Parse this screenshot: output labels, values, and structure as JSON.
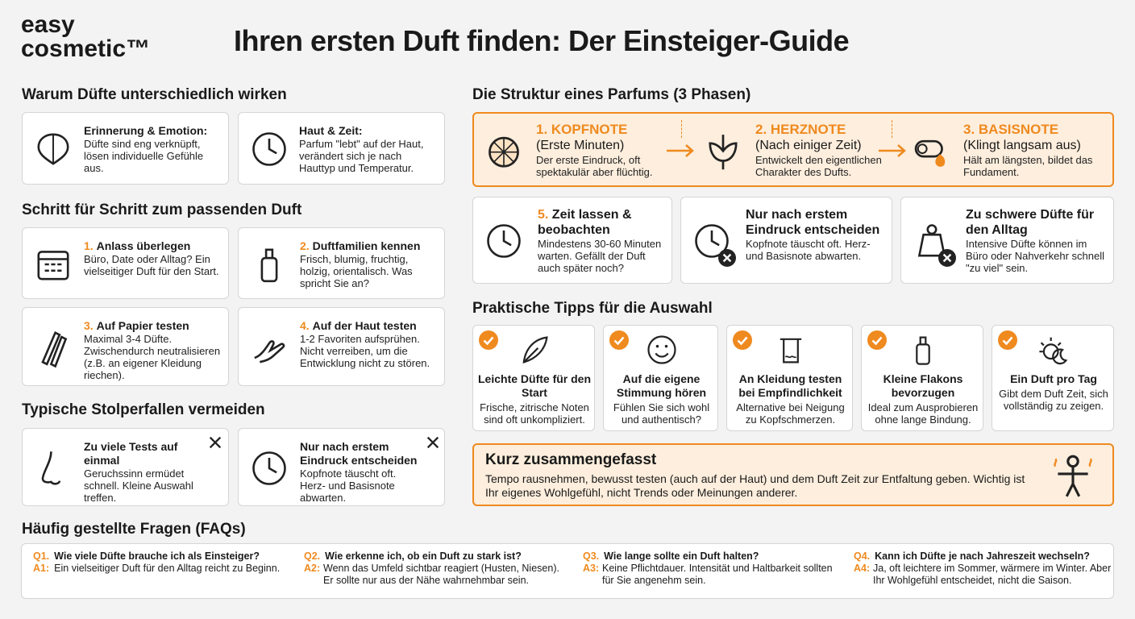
{
  "header": {
    "logo": [
      "easy",
      "cosmetic™"
    ],
    "title": "Ihren ersten Duft finden: Der Einsteiger-Guide"
  },
  "why": {
    "title": "Warum Düfte unterschiedlich wirken",
    "cards": [
      {
        "title": "Erinnerung & Emotion:",
        "text": "Düfte sind eng verknüpft, lösen individuelle Gefühle aus."
      },
      {
        "title": "Haut & Zeit:",
        "text": "Parfum \"lebt\" auf der Haut, verändert sich je nach Hauttyp und Temperatur."
      }
    ]
  },
  "steps": {
    "title": "Schritt für Schritt zum passenden Duft",
    "cards": [
      {
        "number": "1.",
        "title": "Anlass überlegen",
        "text": "Büro, Date oder Alltag? Ein vielseitiger Duft für den Start."
      },
      {
        "number": "2.",
        "title": "Duftfamilien kennen",
        "text": "Frisch, blumig, fruchtig, holzig, orientalisch. Was spricht Sie an?"
      },
      {
        "number": "3.",
        "title": "Auf Papier testen",
        "text": "Maximal 3-4 Düfte. Zwischendurch neutralisieren (z.B. an eigener Kleidung riechen)."
      },
      {
        "number": "4.",
        "title": "Auf der Haut testen",
        "text": "1-2 Favoriten aufsprühen. Nicht verreiben, um die Entwicklung nicht zu stören."
      }
    ]
  },
  "pitfalls": {
    "title": "Typische Stolperfallen vermeiden",
    "cards": [
      {
        "title": "Zu viele Tests auf einmal",
        "text": "Geruchssinn ermüdet schnell. Kleine Auswahl treffen."
      },
      {
        "title": "Nur nach erstem Eindruck entscheiden",
        "text": "Kopfnote täuscht oft. Herz- und Basisnote abwarten."
      }
    ]
  },
  "structure": {
    "title": "Die Struktur eines Parfums (3 Phasen)",
    "phases": [
      {
        "title": "1. KOPFNOTE",
        "subtitle": "(Erste Minuten)",
        "text": "Der erste Eindruck, oft spektakulär aber flüchtig."
      },
      {
        "title": "2. HERZNOTE",
        "subtitle": "(Nach einiger Zeit)",
        "text": "Entwickelt den eigentlichen Charakter des Dufts."
      },
      {
        "title": "3. BASISNOTE",
        "subtitle": "(Klingt langsam aus)",
        "text": "Hält am längsten, bildet das Fundament."
      }
    ],
    "cards": [
      {
        "number": "5.",
        "title": "Zeit lassen & beobachten",
        "text": "Mindestens 30-60 Minuten warten. Gefällt der Duft auch später noch?"
      },
      {
        "title": "Nur nach erstem Eindruck entscheiden",
        "text": "Kopfnote täuscht oft. Herz- und Basisnote abwarten."
      },
      {
        "title": "Zu schwere Düfte für den Alltag",
        "text": "Intensive Düfte können im Büro oder Nahverkehr schnell \"zu viel\" sein."
      }
    ]
  },
  "tips": {
    "title": "Praktische Tipps für die Auswahl",
    "items": [
      {
        "title": "Leichte Düfte für den Start",
        "text": "Frische, zitrische Noten sind oft unkompliziert."
      },
      {
        "title": "Auf die eigene Stimmung hören",
        "text": "Fühlen Sie sich wohl und authentisch?"
      },
      {
        "title": "An Kleidung testen bei Empfindlichkeit",
        "text": "Alternative bei Neigung zu Kopfschmerzen."
      },
      {
        "title": "Kleine Flakons bevorzugen",
        "text": "Ideal zum Ausprobieren ohne lange Bindung."
      },
      {
        "title": "Ein Duft pro Tag",
        "text": "Gibt dem Duft Zeit, sich vollständig zu zeigen."
      }
    ]
  },
  "summary": {
    "title": "Kurz zusammengefasst",
    "text": "Tempo rausnehmen, bewusst testen (auch auf der Haut) und dem Duft Zeit zur Entfaltung geben. Wichtig ist Ihr eigenes Wohlgefühl, nicht Trends oder Meinungen anderer."
  },
  "faq": {
    "title": "Häufig gestellte Fragen (FAQs)",
    "items": [
      {
        "q_label": "Q1.",
        "question": "Wie viele Düfte brauche ich als Einsteiger?",
        "a_label": "A1:",
        "answer": "Ein vielseitiger Duft für den Alltag reicht zu Beginn."
      },
      {
        "q_label": "Q2.",
        "question": "Wie erkenne ich, ob ein Duft zu stark ist?",
        "a_label": "A2:",
        "answer": "Wenn das Umfeld sichtbar reagiert (Husten, Niesen). Er sollte nur aus der Nähe wahrnehmbar sein."
      },
      {
        "q_label": "Q3.",
        "question": "Wie lange sollte ein Duft halten?",
        "a_label": "A3:",
        "answer": "Keine Pflichtdauer. Intensität und Haltbarkeit sollten für Sie angenehm sein."
      },
      {
        "q_label": "Q4.",
        "question": "Kann ich Düfte je nach Jahreszeit wechseln?",
        "a_label": "A4:",
        "answer": "Ja, oft leichtere im Sommer, wärmere im Winter. Aber Ihr Wohlgefühl entscheidet, nicht die Saison."
      }
    ]
  }
}
